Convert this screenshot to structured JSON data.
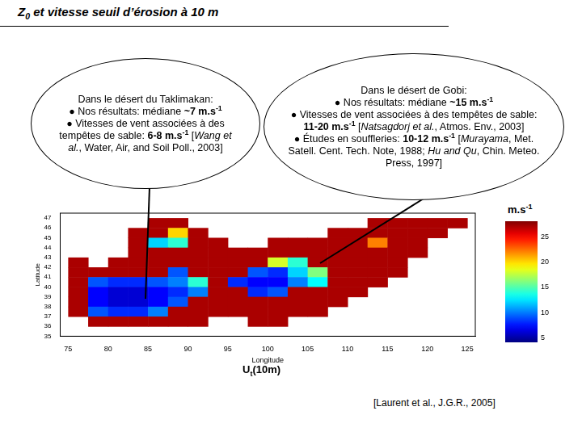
{
  "slide": {
    "title": [
      {
        "t": "Z"
      },
      {
        "t": "0",
        "sub": true
      },
      {
        "t": " et vitesse seuil d’érosion à 10 m"
      }
    ],
    "callouts": [
      [
        [
          {
            "t": "Dans le désert du Taklimakan:"
          }
        ],
        [
          {
            "t": "● Nos résultats: médiane "
          },
          {
            "t": "~7 m.s",
            "b": true
          },
          {
            "t": "-1",
            "b": true,
            "sup": true
          }
        ],
        [
          {
            "t": "● Vitesses de vent associées à des tempêtes de sable: "
          },
          {
            "t": "6-8 m.s",
            "b": true
          },
          {
            "t": "-1",
            "b": true,
            "sup": true
          },
          {
            "t": " ["
          },
          {
            "t": "Wang et al.",
            "i": true
          },
          {
            "t": ", Water, Air, and Soil Poll., 2003]"
          }
        ]
      ],
      [
        [
          {
            "t": "Dans le désert de Gobi:"
          }
        ],
        [
          {
            "t": "● Nos résultats: médiane "
          },
          {
            "t": "~15 m.s",
            "b": true
          },
          {
            "t": "-1",
            "b": true,
            "sup": true
          }
        ],
        [
          {
            "t": "● Vitesses de vent associées à des tempêtes de sable: "
          },
          {
            "t": "11-20 m.s",
            "b": true
          },
          {
            "t": "-1",
            "b": true,
            "sup": true
          },
          {
            "t": " ["
          },
          {
            "t": "Natsagdorj et al.",
            "i": true
          },
          {
            "t": ", Atmos. Env., 2003]"
          }
        ],
        [
          {
            "t": "● Études en souffleries: "
          },
          {
            "t": "10-12 m.s",
            "b": true
          },
          {
            "t": "-1",
            "b": true,
            "sup": true
          },
          {
            "t": " ["
          },
          {
            "t": "Murayama",
            "i": true
          },
          {
            "t": ", Met. Satell. Cent. Tech. Note, 1988; "
          },
          {
            "t": "Hu and Qu",
            "i": true
          },
          {
            "t": ", Chin. Meteo. Press, 1997]"
          }
        ]
      ]
    ],
    "caption": [
      {
        "t": "U"
      },
      {
        "t": "t",
        "sub": true
      },
      {
        "t": "(10m)"
      }
    ],
    "reference": [
      {
        "t": "[Laurent et al., J.G.R., 2005]"
      }
    ]
  },
  "chart_data": {
    "type": "heatmap",
    "x_label": "Longitude",
    "y_label": "Latitude",
    "xlim": [
      74,
      126
    ],
    "xticks": [
      75,
      80,
      85,
      90,
      95,
      100,
      105,
      110,
      115,
      120,
      125
    ],
    "ylim": [
      35,
      47.5
    ],
    "yticks": [
      35,
      36,
      37,
      38,
      39,
      40,
      41,
      42,
      43,
      44,
      45,
      46,
      47
    ],
    "grid": false,
    "x": [
      76.25,
      78.75,
      81.25,
      83.75,
      86.25,
      88.75,
      91.25,
      93.75,
      96.25,
      98.75,
      101.25,
      103.75,
      106.25,
      108.75,
      111.25,
      113.75,
      116.25,
      118.75,
      121.25,
      123.75
    ],
    "y": [
      46.5,
      45.5,
      44.5,
      43.5,
      42.5,
      41.5,
      40.5,
      39.5,
      38.5,
      37.5,
      36.5,
      35.5
    ],
    "cells": [
      [
        null,
        null,
        null,
        null,
        27,
        27,
        null,
        null,
        null,
        null,
        null,
        null,
        null,
        null,
        null,
        27,
        27,
        27,
        27,
        27
      ],
      [
        null,
        null,
        null,
        27,
        27,
        20,
        27,
        null,
        null,
        null,
        null,
        null,
        null,
        27,
        27,
        27,
        27,
        27,
        27,
        null
      ],
      [
        null,
        null,
        null,
        27,
        12,
        14,
        27,
        27,
        null,
        null,
        27,
        27,
        27,
        27,
        27,
        22,
        27,
        27,
        null,
        null
      ],
      [
        null,
        null,
        null,
        27,
        27,
        27,
        27,
        27,
        27,
        27,
        27,
        27,
        27,
        27,
        27,
        27,
        27,
        27,
        null,
        null
      ],
      [
        27,
        null,
        27,
        27,
        27,
        27,
        27,
        27,
        27,
        27,
        18,
        14,
        27,
        27,
        27,
        27,
        27,
        null,
        null,
        null
      ],
      [
        27,
        27,
        27,
        27,
        27,
        9,
        27,
        27,
        27,
        9,
        8,
        12,
        16,
        27,
        27,
        27,
        27,
        null,
        null,
        null
      ],
      [
        27,
        9,
        8,
        8,
        9,
        10,
        14,
        27,
        8,
        7,
        7,
        10,
        13,
        27,
        27,
        27,
        null,
        null,
        null,
        null
      ],
      [
        27,
        7,
        6,
        6,
        7,
        8,
        10,
        27,
        27,
        8,
        9,
        27,
        27,
        27,
        27,
        null,
        null,
        null,
        null,
        null
      ],
      [
        27,
        7,
        6,
        6,
        7,
        9,
        27,
        27,
        27,
        27,
        27,
        27,
        27,
        27,
        null,
        null,
        null,
        null,
        null,
        null
      ],
      [
        27,
        9,
        8,
        8,
        10,
        27,
        27,
        27,
        27,
        27,
        27,
        27,
        27,
        null,
        null,
        null,
        null,
        null,
        null,
        null
      ],
      [
        null,
        27,
        27,
        27,
        27,
        27,
        27,
        null,
        null,
        27,
        27,
        null,
        null,
        null,
        null,
        null,
        null,
        null,
        null,
        null
      ],
      [
        null,
        null,
        null,
        null,
        null,
        null,
        null,
        null,
        null,
        null,
        null,
        null,
        null,
        null,
        null,
        null,
        null,
        null,
        null,
        null
      ]
    ],
    "colorbar": {
      "title": [
        {
          "t": "m.s"
        },
        {
          "t": "-1",
          "sup": true
        }
      ],
      "range": [
        4,
        28
      ],
      "ticks": [
        5,
        10,
        15,
        20,
        25
      ]
    }
  }
}
